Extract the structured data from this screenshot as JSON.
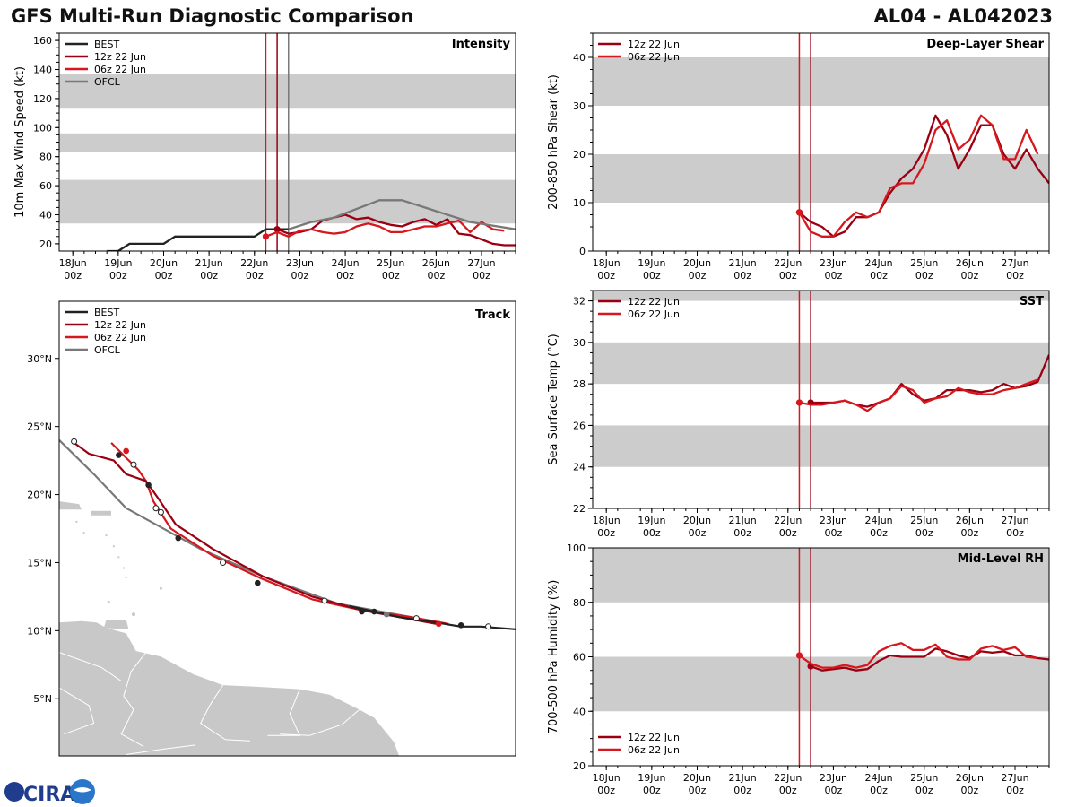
{
  "header": {
    "title_left": "GFS Multi-Run Diagnostic Comparison",
    "title_right": "AL04 - AL042023"
  },
  "colors": {
    "best": "#222222",
    "run12z": "#9b0012",
    "run06z": "#d6181e",
    "ofcl": "#787878",
    "band": "#cccccc",
    "land": "#c8c8c8"
  },
  "time_axis": {
    "ticks": [
      "18Jun",
      "19Jun",
      "20Jun",
      "21Jun",
      "22Jun",
      "23Jun",
      "24Jun",
      "25Jun",
      "26Jun",
      "27Jun"
    ],
    "hour_label": "00z",
    "xlim_days": [
      -0.3,
      9.75
    ],
    "init_06z": 4.25,
    "init_12z": 4.5,
    "ofcl_time": 4.75
  },
  "logo": {
    "text": "CIRA"
  },
  "chart_data": [
    {
      "id": "intensity",
      "type": "line",
      "title": "Intensity",
      "ylabel": "10m Max Wind Speed (kt)",
      "ylim": [
        15,
        165
      ],
      "yticks": [
        20,
        40,
        60,
        80,
        100,
        120,
        140,
        160
      ],
      "bands": [
        [
          34,
          64
        ],
        [
          83,
          96
        ],
        [
          113,
          137
        ]
      ],
      "vlines": [
        "init_06z",
        "init_12z",
        "ofcl_time"
      ],
      "legend": [
        "BEST",
        "12z 22 Jun",
        "06z 22 Jun",
        "OFCL"
      ],
      "series": [
        {
          "name": "BEST",
          "key": "best",
          "t": [
            0.75,
            1.0,
            1.25,
            1.5,
            1.75,
            2.0,
            2.25,
            2.5,
            2.75,
            3.0,
            3.25,
            3.5,
            3.75,
            4.0,
            4.25,
            4.5,
            4.75
          ],
          "v": [
            15,
            15,
            20,
            20,
            20,
            20,
            25,
            25,
            25,
            25,
            25,
            25,
            25,
            25,
            30,
            30,
            30
          ]
        },
        {
          "name": "12z 22 Jun",
          "key": "run12z",
          "t": [
            4.5,
            4.75,
            5.0,
            5.25,
            5.5,
            5.75,
            6.0,
            6.25,
            6.5,
            6.75,
            7.0,
            7.25,
            7.5,
            7.75,
            8.0,
            8.25,
            8.5,
            8.75,
            9.0,
            9.25,
            9.5,
            9.75
          ],
          "v": [
            30,
            27,
            28,
            30,
            36,
            38,
            40,
            37,
            38,
            35,
            33,
            32,
            35,
            37,
            33,
            37,
            27,
            26,
            23,
            20,
            19,
            19
          ]
        },
        {
          "name": "06z 22 Jun",
          "key": "run06z",
          "t": [
            4.25,
            4.5,
            4.75,
            5.0,
            5.25,
            5.5,
            5.75,
            6.0,
            6.25,
            6.5,
            6.75,
            7.0,
            7.25,
            7.5,
            7.75,
            8.0,
            8.25,
            8.5,
            8.75,
            9.0,
            9.25,
            9.5
          ],
          "v": [
            25,
            28,
            25,
            29,
            30,
            28,
            27,
            28,
            32,
            34,
            32,
            28,
            28,
            30,
            32,
            32,
            34,
            36,
            28,
            35,
            30,
            29
          ]
        },
        {
          "name": "OFCL",
          "key": "ofcl",
          "t": [
            4.75,
            5.25,
            5.75,
            6.75,
            7.25,
            7.75,
            8.75,
            9.75
          ],
          "v": [
            30,
            35,
            38,
            50,
            50,
            45,
            35,
            30
          ]
        }
      ]
    },
    {
      "id": "shear",
      "type": "line",
      "title": "Deep-Layer Shear",
      "ylabel": "200-850 hPa Shear (kt)",
      "ylim": [
        0,
        45
      ],
      "yticks": [
        0,
        10,
        20,
        30,
        40
      ],
      "bands": [
        [
          10,
          20
        ],
        [
          30,
          40
        ]
      ],
      "vlines": [
        "init_06z",
        "init_12z"
      ],
      "legend": [
        "12z 22 Jun",
        "06z 22 Jun"
      ],
      "series": [
        {
          "name": "12z 22 Jun",
          "key": "run12z",
          "t": [
            4.25,
            4.5,
            4.75,
            5.0,
            5.25,
            5.5,
            5.75,
            6.0,
            6.25,
            6.5,
            6.75,
            7.0,
            7.25,
            7.5,
            7.75,
            8.0,
            8.25,
            8.5,
            8.75,
            9.0,
            9.25,
            9.5,
            9.75
          ],
          "v": [
            8,
            6,
            5,
            3,
            4,
            7,
            7,
            8,
            12,
            15,
            17,
            21,
            28,
            24,
            17,
            21,
            26,
            26,
            20,
            17,
            21,
            17,
            14
          ]
        },
        {
          "name": "06z 22 Jun",
          "key": "run06z",
          "t": [
            4.25,
            4.5,
            4.75,
            5.0,
            5.25,
            5.5,
            5.75,
            6.0,
            6.25,
            6.5,
            6.75,
            7.0,
            7.25,
            7.5,
            7.75,
            8.0,
            8.25,
            8.5,
            8.75,
            9.0,
            9.25,
            9.5
          ],
          "v": [
            8,
            4,
            3,
            3,
            6,
            8,
            7,
            8,
            13,
            14,
            14,
            18,
            25,
            27,
            21,
            23,
            28,
            26,
            19,
            19,
            25,
            20
          ]
        }
      ]
    },
    {
      "id": "sst",
      "type": "line",
      "title": "SST",
      "ylabel": "Sea Surface Temp (°C)",
      "ylim": [
        22,
        32.5
      ],
      "yticks": [
        22,
        24,
        26,
        28,
        30,
        32
      ],
      "bands": [
        [
          24,
          26
        ],
        [
          28,
          30
        ],
        [
          32,
          34
        ]
      ],
      "vlines": [
        "init_06z",
        "init_12z"
      ],
      "legend": [
        "12z 22 Jun",
        "06z 22 Jun"
      ],
      "series": [
        {
          "name": "12z 22 Jun",
          "key": "run12z",
          "t": [
            4.5,
            4.75,
            5.0,
            5.25,
            5.5,
            5.75,
            6.0,
            6.25,
            6.5,
            6.75,
            7.0,
            7.25,
            7.5,
            7.75,
            8.0,
            8.25,
            8.5,
            8.75,
            9.0,
            9.25,
            9.5,
            9.75
          ],
          "v": [
            27.1,
            27.1,
            27.1,
            27.2,
            27.0,
            26.9,
            27.1,
            27.3,
            28.0,
            27.5,
            27.2,
            27.3,
            27.7,
            27.7,
            27.7,
            27.6,
            27.7,
            28.0,
            27.8,
            27.9,
            28.1,
            29.4
          ]
        },
        {
          "name": "06z 22 Jun",
          "key": "run06z",
          "t": [
            4.25,
            4.5,
            4.75,
            5.0,
            5.25,
            5.5,
            5.75,
            6.0,
            6.25,
            6.5,
            6.75,
            7.0,
            7.25,
            7.5,
            7.75,
            8.0,
            8.25,
            8.5,
            8.75,
            9.0,
            9.25,
            9.5
          ],
          "v": [
            27.1,
            27.0,
            27.0,
            27.1,
            27.2,
            27.0,
            26.7,
            27.1,
            27.3,
            27.9,
            27.7,
            27.1,
            27.3,
            27.4,
            27.8,
            27.6,
            27.5,
            27.5,
            27.7,
            27.8,
            28.0,
            28.2
          ]
        }
      ]
    },
    {
      "id": "rh",
      "type": "line",
      "title": "Mid-Level RH",
      "ylabel": "700-500 hPa Humidity (%)",
      "ylim": [
        20,
        100
      ],
      "yticks": [
        20,
        40,
        60,
        80,
        100
      ],
      "bands": [
        [
          40,
          60
        ],
        [
          80,
          100
        ]
      ],
      "vlines": [
        "init_06z",
        "init_12z"
      ],
      "legend": [
        "12z 22 Jun",
        "06z 22 Jun"
      ],
      "legend_pos": "bottom-left",
      "series": [
        {
          "name": "12z 22 Jun",
          "key": "run12z",
          "t": [
            4.5,
            4.75,
            5.0,
            5.25,
            5.5,
            5.75,
            6.0,
            6.25,
            6.5,
            6.75,
            7.0,
            7.25,
            7.5,
            7.75,
            8.0,
            8.25,
            8.5,
            8.75,
            9.0,
            9.25,
            9.5,
            9.75
          ],
          "v": [
            56.5,
            55,
            55.5,
            56,
            55,
            55.5,
            58.5,
            60.5,
            60,
            60,
            60,
            63,
            62,
            60.5,
            59.5,
            62,
            61.5,
            62,
            60.5,
            60.5,
            59.5,
            59
          ]
        },
        {
          "name": "06z 22 Jun",
          "key": "run06z",
          "t": [
            4.25,
            4.5,
            4.75,
            5.0,
            5.25,
            5.5,
            5.75,
            6.0,
            6.25,
            6.5,
            6.75,
            7.0,
            7.25,
            7.5,
            7.75,
            8.0,
            8.25,
            8.5,
            8.75,
            9.0,
            9.25,
            9.5
          ],
          "v": [
            60.5,
            57.5,
            56,
            56,
            57,
            56,
            57,
            62,
            64,
            65,
            62.5,
            62.5,
            64.5,
            60,
            59,
            59,
            63,
            64,
            62.5,
            63.5,
            60,
            59.5
          ]
        }
      ]
    },
    {
      "id": "track",
      "type": "line",
      "title": "Track",
      "xlim_lon": [
        -63.7,
        -45.3
      ],
      "ylim_lat": [
        0.8,
        34.2
      ],
      "yticks_lat": [
        5,
        10,
        15,
        20,
        25,
        30
      ],
      "ytick_labels": [
        "5°N",
        "10°N",
        "15°N",
        "20°N",
        "25°N",
        "30°N"
      ],
      "legend": [
        "BEST",
        "12z 22 Jun",
        "06z 22 Jun",
        "OFCL"
      ],
      "series": [
        {
          "name": "BEST",
          "key": "best",
          "lon": [
            -45.3,
            -46.7,
            -47.5,
            -48.5,
            -50.0,
            -52.0
          ],
          "lat": [
            10.1,
            10.3,
            10.3,
            10.6,
            11.0,
            11.8
          ],
          "filled_markers": [
            [
              -47.5,
              10.4
            ],
            [
              -51.0,
              11.4
            ]
          ],
          "open_markers": [
            [
              -46.4,
              10.3
            ],
            [
              -49.3,
              10.9
            ]
          ]
        },
        {
          "name": "12z 22 Jun",
          "key": "run12z",
          "lon": [
            -48.5,
            -50.0,
            -51.5,
            -53.5,
            -55.5,
            -57.5,
            -59.0,
            -59.7,
            -60.2,
            -61.0,
            -61.5,
            -62.5,
            -63.1
          ],
          "lat": [
            10.5,
            11.0,
            11.5,
            12.5,
            14.0,
            16.0,
            17.8,
            19.7,
            21.0,
            21.5,
            22.5,
            23.0,
            23.8
          ],
          "filled_markers": [
            [
              -51.5,
              11.4
            ],
            [
              -55.7,
              13.5
            ],
            [
              -58.9,
              16.8
            ],
            [
              -60.1,
              20.7
            ],
            [
              -61.3,
              22.9
            ]
          ],
          "open_markers": [
            [
              -53.0,
              12.2
            ],
            [
              -57.1,
              15.0
            ],
            [
              -59.6,
              18.7
            ],
            [
              -60.7,
              22.2
            ],
            [
              -63.1,
              23.9
            ]
          ]
        },
        {
          "name": "06z 22 Jun",
          "key": "run06z",
          "lon": [
            -48.0,
            -49.5,
            -51.5,
            -53.5,
            -55.5,
            -57.5,
            -59.2,
            -59.9,
            -60.2,
            -60.5,
            -61.0,
            -61.6
          ],
          "lat": [
            10.5,
            11.0,
            11.5,
            12.3,
            13.8,
            15.5,
            17.5,
            19.5,
            21.0,
            21.8,
            22.7,
            23.8
          ],
          "filled_markers": [
            [
              -48.4,
              10.5
            ],
            [
              -61.0,
              23.2
            ]
          ],
          "open_markers": [
            [
              -59.8,
              19.0
            ]
          ]
        },
        {
          "name": "OFCL",
          "key": "ofcl",
          "lon": [
            -49.5,
            -52.5,
            -55.5,
            -58.0,
            -61.0,
            -62.3,
            -63.7
          ],
          "lat": [
            11.0,
            12.0,
            14.0,
            16.0,
            19.0,
            21.5,
            24.0
          ],
          "filled_markers": [
            [
              -50.5,
              11.2
            ]
          ],
          "open_markers": []
        }
      ]
    }
  ]
}
